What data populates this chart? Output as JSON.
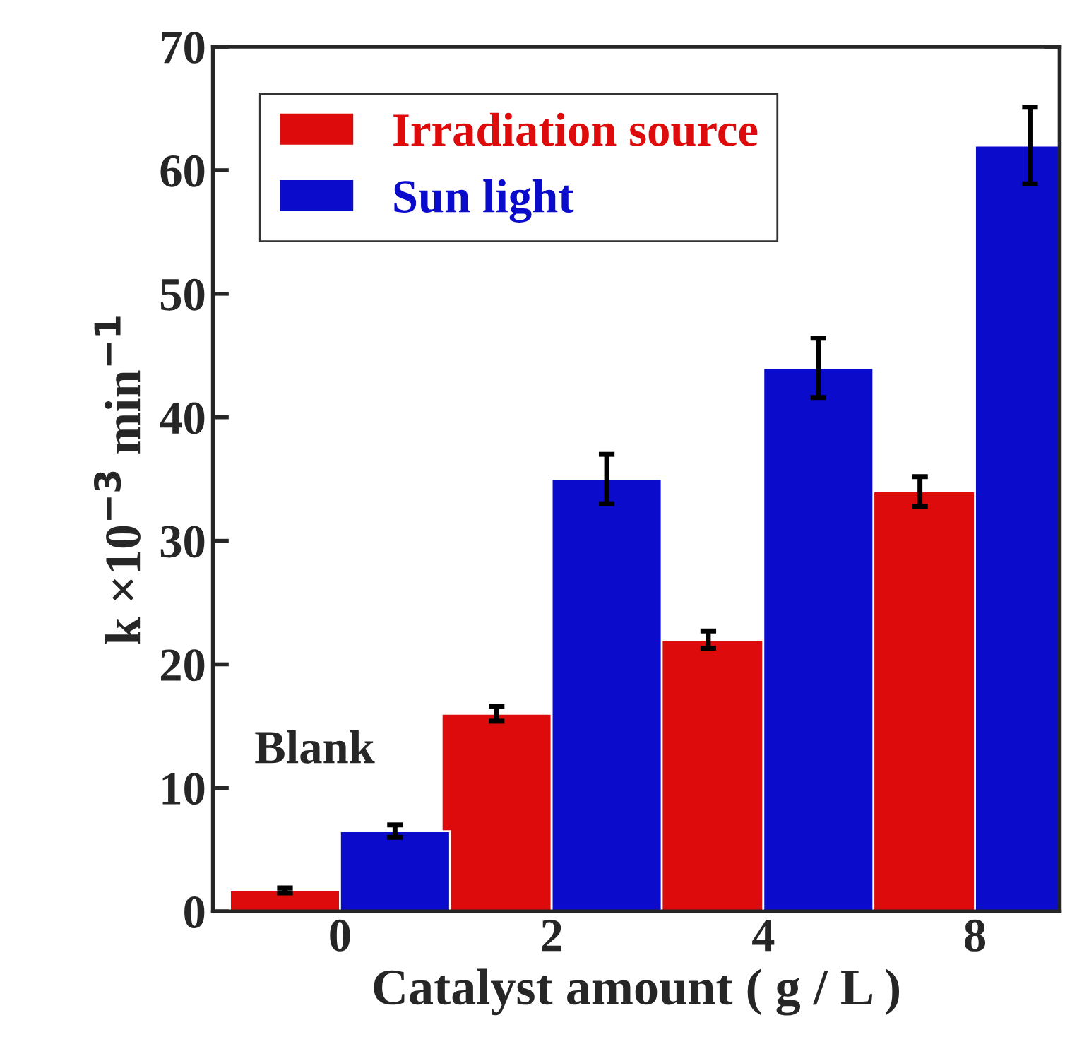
{
  "chart_data": {
    "type": "bar",
    "xlabel": "Catalyst amount ( g / L )",
    "ylabel": "k ×10$^{−3}$ min$^{−1}$",
    "categories": [
      "0",
      "2",
      "4",
      "8"
    ],
    "series": [
      {
        "name": "Irradiation source",
        "color": "#dd0b0b",
        "values": [
          1.7,
          16,
          22,
          34
        ],
        "errors": [
          0.2,
          0.6,
          0.7,
          1.2
        ]
      },
      {
        "name": "Sun light",
        "color": "#0b0bcc",
        "values": [
          6.5,
          35,
          44,
          62
        ],
        "errors": [
          0.5,
          2,
          2.4,
          3.1
        ]
      }
    ],
    "ylim": [
      0,
      70
    ],
    "yticks": [
      0,
      10,
      20,
      30,
      40,
      50,
      60,
      70
    ],
    "grid": false,
    "legend": "top left",
    "annotations": [
      "Blank"
    ]
  }
}
